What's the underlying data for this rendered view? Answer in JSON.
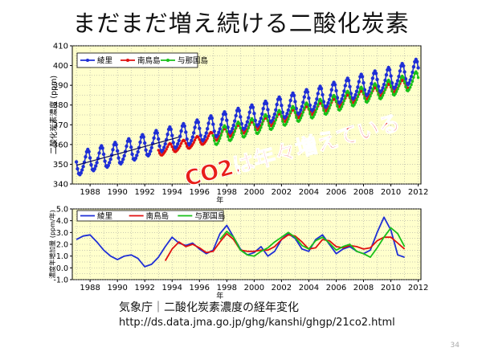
{
  "slide": {
    "title": "まだまだ増え続ける二酸化炭素",
    "source_line": "気象庁｜二酸化炭素濃度の経年変化",
    "source_url": "http://ds.data.jma.go.jp/ghg/kanshi/ghgp/21co2.html",
    "page_number": "34",
    "annotation": "CO2は年々増えている"
  },
  "colors": {
    "ryori": "#1f2fd6",
    "minamitorishima": "#e01010",
    "yonaguni": "#19c019",
    "plot_bg": "#ffffcc",
    "annotation": "#e8201a"
  },
  "chart_data": [
    {
      "type": "line",
      "ylabel": "二酸化炭素濃度 (ppm)",
      "xlabel": "年",
      "xlim": [
        1986.7,
        2012.2
      ],
      "ylim": [
        340,
        410
      ],
      "x_ticks": [
        "1988",
        "1990",
        "1992",
        "1994",
        "1996",
        "1998",
        "2000",
        "2002",
        "2004",
        "2006",
        "2008",
        "2010",
        "2012"
      ],
      "y_ticks": [
        "340",
        "350",
        "360",
        "370",
        "380",
        "390",
        "400",
        "410"
      ],
      "grid": true,
      "legend": "top-left",
      "series": [
        {
          "name": "綾里",
          "color": "#1f2fd6",
          "start": 1987.0,
          "end": 2012.0,
          "base": 349.5,
          "trend": 1.9,
          "amplitude": 6.5,
          "smooth_trend": true
        },
        {
          "name": "南鳥島",
          "color": "#e01010",
          "start": 1993.0,
          "end": 2011.3,
          "base": 356.2,
          "trend": 1.9,
          "amplitude": 2.8
        },
        {
          "name": "与那国島",
          "color": "#19c019",
          "start": 1997.0,
          "end": 2012.0,
          "base": 363.2,
          "trend": 1.95,
          "amplitude": 4.8
        }
      ]
    },
    {
      "type": "line",
      "ylabel": "濃度年増加量 (ppm/年)",
      "xlabel": "年",
      "xlim": [
        1986.7,
        2012.2
      ],
      "ylim": [
        -1.0,
        5.0
      ],
      "x_ticks": [
        "1988",
        "1990",
        "1992",
        "1994",
        "1996",
        "1998",
        "2000",
        "2002",
        "2004",
        "2006",
        "2008",
        "2010",
        "2012"
      ],
      "y_ticks": [
        "-1.0",
        "0.0",
        "1.0",
        "2.0",
        "3.0",
        "4.0",
        "5.0"
      ],
      "grid": true,
      "legend": "top",
      "series": [
        {
          "name": "綾里",
          "color": "#1f2fd6",
          "x": [
            1987.0,
            1987.5,
            1988.0,
            1988.5,
            1989.0,
            1989.5,
            1990.0,
            1990.5,
            1991.0,
            1991.5,
            1992.0,
            1992.5,
            1993.0,
            1993.5,
            1994.0,
            1994.5,
            1995.0,
            1995.5,
            1996.0,
            1996.5,
            1997.0,
            1997.5,
            1998.0,
            1998.5,
            1999.0,
            1999.5,
            2000.0,
            2000.5,
            2001.0,
            2001.5,
            2002.0,
            2002.5,
            2003.0,
            2003.5,
            2004.0,
            2004.5,
            2005.0,
            2005.5,
            2006.0,
            2006.5,
            2007.0,
            2007.5,
            2008.0,
            2008.5,
            2009.0,
            2009.5,
            2010.0,
            2010.5,
            2011.0
          ],
          "y": [
            2.4,
            2.7,
            2.8,
            2.2,
            1.5,
            1.0,
            0.7,
            1.0,
            1.1,
            0.8,
            0.1,
            0.3,
            0.9,
            1.8,
            2.6,
            2.1,
            1.9,
            2.1,
            1.6,
            1.2,
            1.5,
            2.9,
            3.6,
            2.6,
            1.6,
            1.1,
            1.3,
            1.8,
            1.0,
            1.4,
            2.4,
            2.9,
            2.5,
            1.6,
            1.4,
            2.4,
            2.8,
            2.0,
            1.2,
            1.6,
            1.8,
            1.4,
            1.2,
            1.5,
            3.0,
            4.3,
            3.2,
            1.1,
            0.9
          ]
        },
        {
          "name": "南鳥島",
          "color": "#e01010",
          "x": [
            1993.5,
            1994.0,
            1994.5,
            1995.0,
            1995.5,
            1996.0,
            1996.5,
            1997.0,
            1997.5,
            1998.0,
            1998.5,
            1999.0,
            1999.5,
            2000.0,
            2000.5,
            2001.0,
            2001.5,
            2002.0,
            2002.5,
            2003.0,
            2003.5,
            2004.0,
            2004.5,
            2005.0,
            2005.5,
            2006.0,
            2006.5,
            2007.0,
            2007.5,
            2008.0,
            2008.5,
            2009.0,
            2009.5,
            2010.0,
            2010.5,
            2011.0
          ],
          "y": [
            0.6,
            1.6,
            2.2,
            1.8,
            2.0,
            1.7,
            1.3,
            1.4,
            2.2,
            2.9,
            2.4,
            1.5,
            1.4,
            1.4,
            1.5,
            1.5,
            1.8,
            2.4,
            2.8,
            2.7,
            2.2,
            1.6,
            1.7,
            2.4,
            2.3,
            1.8,
            1.7,
            1.9,
            1.8,
            1.6,
            1.7,
            2.3,
            2.6,
            2.6,
            2.1,
            1.6
          ]
        },
        {
          "name": "与那国島",
          "color": "#19c019",
          "x": [
            1997.5,
            1998.0,
            1998.5,
            1999.0,
            1999.5,
            2000.0,
            2000.5,
            2001.0,
            2001.5,
            2002.0,
            2002.5,
            2003.0,
            2003.5,
            2004.0,
            2004.5,
            2005.0,
            2005.5,
            2006.0,
            2006.5,
            2007.0,
            2007.5,
            2008.0,
            2008.5,
            2009.0,
            2009.5,
            2010.0,
            2010.5,
            2011.0
          ],
          "y": [
            2.4,
            3.1,
            2.6,
            1.5,
            1.1,
            1.0,
            1.4,
            1.7,
            2.2,
            2.6,
            3.0,
            2.6,
            1.9,
            1.6,
            2.3,
            2.6,
            2.1,
            1.5,
            1.8,
            2.0,
            1.4,
            1.2,
            0.9,
            1.7,
            2.6,
            3.4,
            2.9,
            1.8
          ]
        }
      ]
    }
  ]
}
